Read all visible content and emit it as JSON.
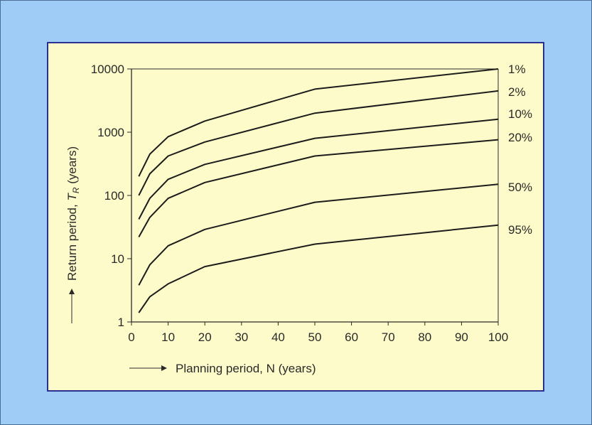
{
  "chart_data": {
    "type": "line",
    "title": "",
    "xlabel": "Planning period, N (years)",
    "ylabel": "Return period, T_R (years)",
    "ylabel_parts": {
      "main": "Return period, ",
      "symbol": "T",
      "sub": "R",
      "unit": " (years)"
    },
    "x_ticks": [
      "0",
      "10",
      "20",
      "30",
      "40",
      "50",
      "60",
      "70",
      "80",
      "90",
      "100"
    ],
    "y_ticks": [
      "1",
      "10",
      "100",
      "1000",
      "10000"
    ],
    "xlim": [
      0,
      100
    ],
    "ylim": [
      1,
      10000
    ],
    "yscale": "log",
    "grid": false,
    "legend": "labels at right end of each curve",
    "series": [
      {
        "name": "1%",
        "x": [
          2,
          5,
          10,
          20,
          50,
          100
        ],
        "y": [
          200,
          450,
          850,
          1500,
          4800,
          10000
        ]
      },
      {
        "name": "2%",
        "x": [
          2,
          5,
          10,
          20,
          50,
          100
        ],
        "y": [
          100,
          220,
          420,
          700,
          2000,
          4500
        ]
      },
      {
        "name": "10%",
        "x": [
          2,
          5,
          10,
          20,
          50,
          100
        ],
        "y": [
          42,
          90,
          180,
          310,
          800,
          1600
        ]
      },
      {
        "name": "20%",
        "x": [
          2,
          5,
          10,
          20,
          50,
          100
        ],
        "y": [
          22,
          45,
          90,
          160,
          420,
          760
        ]
      },
      {
        "name": "50%",
        "x": [
          2,
          5,
          10,
          20,
          50,
          100
        ],
        "y": [
          3.8,
          8,
          16,
          29,
          78,
          150
        ]
      },
      {
        "name": "95%",
        "x": [
          2,
          5,
          10,
          20,
          50,
          100
        ],
        "y": [
          1.4,
          2.5,
          4,
          7.5,
          17,
          34
        ]
      }
    ]
  }
}
